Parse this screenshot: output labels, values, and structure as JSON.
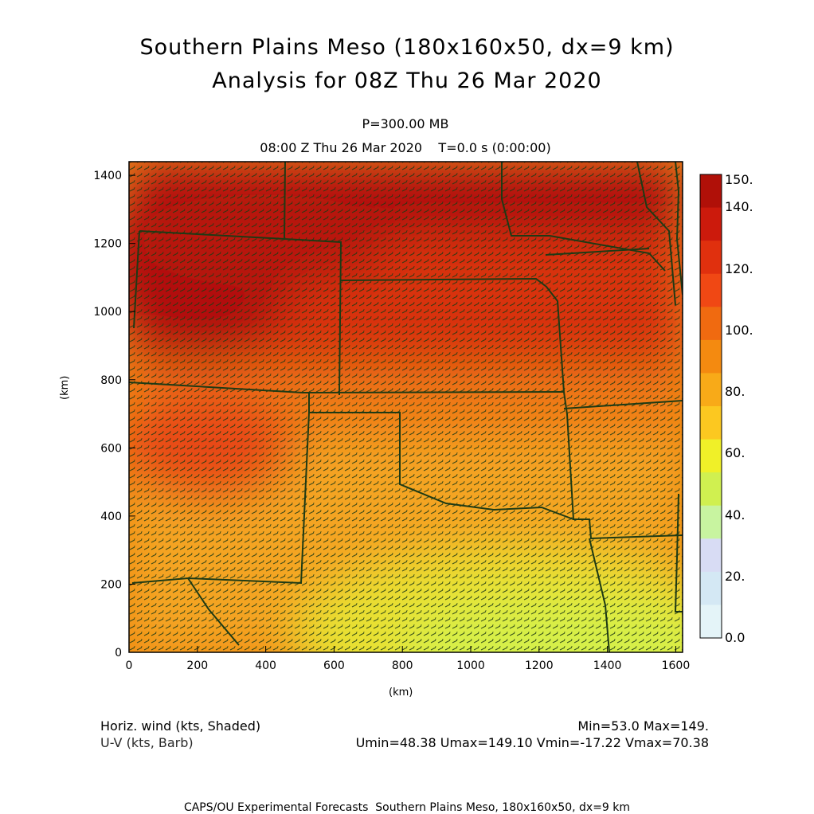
{
  "header": {
    "title_line1": "Southern Plains Meso (180x160x50, dx=9 km)",
    "title_line2": "Analysis for 08Z Thu 26 Mar 2020",
    "level": "P=300.00 MB",
    "valid_time": "08:00 Z Thu 26 Mar 2020    T=0.0 s (0:00:00)"
  },
  "axes": {
    "x_label": "(km)",
    "y_label": "(km)",
    "x_ticks": [
      "0",
      "200",
      "400",
      "600",
      "800",
      "1000",
      "1200",
      "1400",
      "1600"
    ],
    "y_ticks": [
      "0",
      "200",
      "400",
      "600",
      "800",
      "1000",
      "1200",
      "1400"
    ],
    "x_range": [
      0,
      1620
    ],
    "y_range": [
      0,
      1440
    ]
  },
  "colorbar": {
    "labels": [
      "150.",
      "140.",
      "120.",
      "100.",
      "80.",
      "60.",
      "40.",
      "20.",
      "0.0"
    ],
    "colors_top_to_bottom": [
      "#b01008",
      "#cc1a0c",
      "#e0300e",
      "#f04814",
      "#f06a10",
      "#f48a10",
      "#f8aa18",
      "#fcc820",
      "#f0f028",
      "#d0f050",
      "#c8f4a0",
      "#d8dcf4",
      "#d4e8f4",
      "#e4f4f8"
    ]
  },
  "legend": {
    "field_label": "Horiz. wind (kts, Shaded)",
    "vector_label": "U-V (kts, Barb)",
    "minmax": "Min=53.0 Max=149.",
    "uv_stats": "Umin=48.38 Umax=149.10 Vmin=-17.22 Vmax=70.38"
  },
  "footer": "CAPS/OU Experimental Forecasts  Southern Plains Meso, 180x160x50, dx=9 km"
}
